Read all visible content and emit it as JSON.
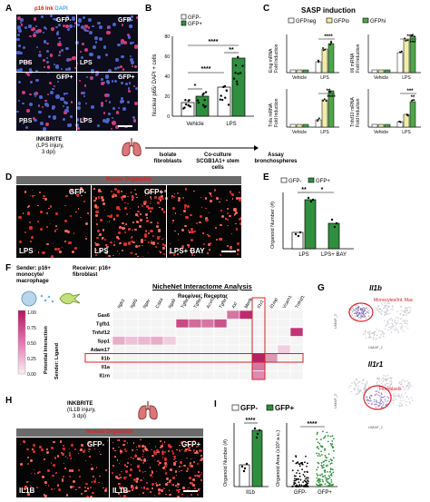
{
  "panels": {
    "A": {
      "letter": "A",
      "header_red": "p16 Ink",
      "header_blue": "DAPI",
      "tiles": [
        {
          "label": "GFP-",
          "condition": "PBS"
        },
        {
          "label": "GFP-",
          "condition": "LPS"
        },
        {
          "label": "GFP+",
          "condition": "PBS"
        },
        {
          "label": "GFP+",
          "condition": "LPS"
        }
      ]
    },
    "B": {
      "letter": "B",
      "legend": [
        "GFP-",
        "GFP+"
      ],
      "ylabel": "Nuclear p65/ DAPI + cells",
      "yticks": [
        "0",
        "20",
        "40",
        "60",
        "80"
      ],
      "groups": [
        "Vehicle",
        "LPS"
      ],
      "sig": [
        "****",
        "**",
        "****",
        "*"
      ],
      "colors": {
        "gfp_minus": "#ffffff",
        "gfp_plus": "#2f8f3e"
      }
    },
    "C": {
      "letter": "C",
      "title": "SASP induction",
      "legend": [
        "GFPneg",
        "GFPlo",
        "GFPhi"
      ],
      "subplots": [
        {
          "ylabel": "Emg mRNA\nFold Induction",
          "sig": [
            "****",
            "*"
          ]
        },
        {
          "ylabel": "Il6 mRNA\nFold Induction",
          "sig": [
            "***",
            "***"
          ]
        },
        {
          "ylabel": "Tnfa mRNA\nFold Induction",
          "sig": [
            "**",
            "****"
          ]
        },
        {
          "ylabel": "Tnfsf10 mRNA\nFold Induction",
          "sig": [
            "***",
            "**"
          ]
        }
      ],
      "xgroups": [
        "Vehicle",
        "LPS"
      ],
      "colors": {
        "neg": "#ffffff",
        "lo": "#f1eda8",
        "hi": "#4fa64a"
      }
    },
    "workflow": {
      "title_line1": "INKBRITE",
      "title_line2": "(LPS injury,",
      "title_line3": "3 dpi)",
      "steps": [
        "Isolate fibroblasts",
        "Co-culture SCGB1A1+ stem cells",
        "Assay bronchospheres"
      ]
    },
    "D": {
      "letter": "D",
      "header": "Mouse Organoids",
      "tiles": [
        {
          "top": "GFP-",
          "bottom": "LPS"
        },
        {
          "top": "GFP+",
          "bottom": "LPS"
        },
        {
          "top": "",
          "bottom": "LPS+ BAY"
        }
      ]
    },
    "E": {
      "letter": "E",
      "legend": [
        "GFP-",
        "GFP+"
      ],
      "ylabel": "Organoid Number (#)",
      "xgroups": [
        "LPS",
        "LPS+ BAY"
      ],
      "sig": [
        "**",
        "*"
      ]
    },
    "F": {
      "letter": "F",
      "sender": "Sender: p16+ monocyte/ macrophage",
      "receiver": "Receiver: p16+ fibroblast",
      "title": "NicheNet Interactome Analysis",
      "receptor_axis": "Receiver: Receptor",
      "ligand_axis": "Sender: Ligand",
      "scale_label": "Potential Interaction",
      "scale_ticks": [
        "1.00",
        "0.75",
        "0.50",
        "0.25",
        "0.00"
      ],
      "receptors": [
        "Itgb1",
        "Itgb5",
        "Itgav",
        "Cd44",
        "Itga9",
        "Tgfbr3",
        "Tgfbr2",
        "Acvrl1",
        "Tgfbr1",
        "Axl",
        "Mertk",
        "Il1r1",
        "Il1rap",
        "Vcam1",
        "Tnfrsf12a"
      ],
      "ligands": [
        "Gas6",
        "Tgfb1",
        "Tnfsf12",
        "Spp1",
        "Adam17",
        "Il1b",
        "Il1a",
        "Il1rn"
      ],
      "cells": [
        {
          "row": 0,
          "col": 9,
          "v": 0.55
        },
        {
          "row": 0,
          "col": 10,
          "v": 0.9
        },
        {
          "row": 1,
          "col": 5,
          "v": 0.75
        },
        {
          "row": 1,
          "col": 6,
          "v": 0.6
        },
        {
          "row": 1,
          "col": 7,
          "v": 0.55
        },
        {
          "row": 1,
          "col": 8,
          "v": 0.7
        },
        {
          "row": 2,
          "col": 14,
          "v": 0.85
        },
        {
          "row": 3,
          "col": 0,
          "v": 0.3
        },
        {
          "row": 3,
          "col": 1,
          "v": 0.2
        },
        {
          "row": 3,
          "col": 2,
          "v": 0.25
        },
        {
          "row": 3,
          "col": 3,
          "v": 0.3
        },
        {
          "row": 3,
          "col": 4,
          "v": 0.15
        },
        {
          "row": 4,
          "col": 13,
          "v": 0.15
        },
        {
          "row": 5,
          "col": 11,
          "v": 0.95
        },
        {
          "row": 5,
          "col": 12,
          "v": 0.4
        },
        {
          "row": 6,
          "col": 11,
          "v": 0.55
        },
        {
          "row": 7,
          "col": 11,
          "v": 0.45
        }
      ]
    },
    "G": {
      "letter": "G",
      "top_title": "Il1b",
      "top_annotation": "Monocytes/Int. Mac",
      "bottom_title": "Il1r1",
      "bottom_annotation": "Fibroblasts",
      "xlabel": "UMAP_1",
      "ylabel": "UMAP_2"
    },
    "H": {
      "letter": "H",
      "title_line1": "INKBRITE",
      "title_line2": "(IL1B injury,",
      "title_line3": "3 dpi)",
      "header": "Human Organoids",
      "tiles": [
        {
          "top": "GFP-",
          "bottom": "IL1B"
        },
        {
          "top": "GFP+",
          "bottom": "IL1B"
        }
      ]
    },
    "I": {
      "letter": "I",
      "legend": [
        "GFP-",
        "GFP+"
      ],
      "left_ylabel": "Organoid Number (#)",
      "left_x": "Il1b",
      "left_sig": "****",
      "right_ylabel": "Organoid Area (x10³ a.u.)",
      "right_x": [
        "GFP-",
        "GFP+"
      ],
      "right_sig": "****"
    }
  }
}
